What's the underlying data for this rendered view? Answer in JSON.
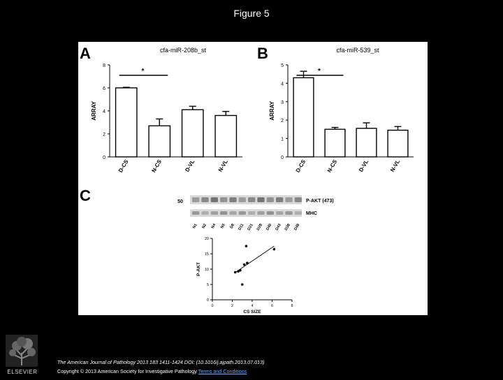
{
  "slide_title": "Figure 5",
  "panels": {
    "a": {
      "letter": "A"
    },
    "b": {
      "letter": "B"
    },
    "c": {
      "letter": "C"
    }
  },
  "blot": {
    "marker": "50",
    "band_labels": [
      "P-AKT (473)",
      "MHC"
    ],
    "lanes": [
      "N1",
      "N2",
      "N4",
      "N5",
      "D8",
      "D11",
      "D21",
      "D28",
      "D40",
      "D43",
      "D38",
      "D48"
    ]
  },
  "chart_data": [
    {
      "type": "bar",
      "title": "cfa-miR-208b_st",
      "ylabel": "ARRAY",
      "categories": [
        "D-CS",
        "N-CS",
        "D-VL",
        "N-VL"
      ],
      "values": [
        6.0,
        2.7,
        4.1,
        3.6
      ],
      "errors": [
        0.05,
        0.6,
        0.3,
        0.35
      ],
      "ylim": [
        0,
        8
      ],
      "yticks": [
        "0",
        "2",
        "4",
        "6",
        "8"
      ],
      "annotation": "*"
    },
    {
      "type": "bar",
      "title": "cfa-miR-539_st",
      "ylabel": "ARRAY",
      "categories": [
        "D-CS",
        "N-CS",
        "D-VL",
        "N-VL"
      ],
      "values": [
        4.3,
        1.5,
        1.55,
        1.45
      ],
      "errors": [
        0.35,
        0.1,
        0.3,
        0.2
      ],
      "ylim": [
        0,
        5
      ],
      "yticks": [
        "0",
        "1",
        "2",
        "3",
        "4",
        "5"
      ],
      "annotation": "*"
    },
    {
      "type": "scatter",
      "xlabel": "CS SIZE",
      "ylabel": "P-AKT",
      "xlim": [
        0,
        8
      ],
      "ylim": [
        0,
        20
      ],
      "xticks": [
        "0",
        "2",
        "4",
        "6",
        "8"
      ],
      "yticks": [
        "0",
        "5",
        "10",
        "15",
        "20"
      ],
      "points": [
        [
          2.3,
          9.0
        ],
        [
          2.6,
          9.3
        ],
        [
          2.8,
          9.6
        ],
        [
          3.0,
          5.0
        ],
        [
          3.2,
          11.5
        ],
        [
          3.5,
          12.0
        ],
        [
          3.4,
          17.5
        ],
        [
          6.2,
          16.5
        ]
      ],
      "fit": [
        [
          2.2,
          8.7
        ],
        [
          6.2,
          17.5
        ]
      ]
    }
  ],
  "footer": {
    "line1": "The American Journal of Pathology 2013 183 1411-1424 DOI: (10.1016/j.ajpath.2013.07.013)",
    "line2": "Copyright © 2013 American Society for Investigative Pathology",
    "link": "Terms and Conditions"
  }
}
